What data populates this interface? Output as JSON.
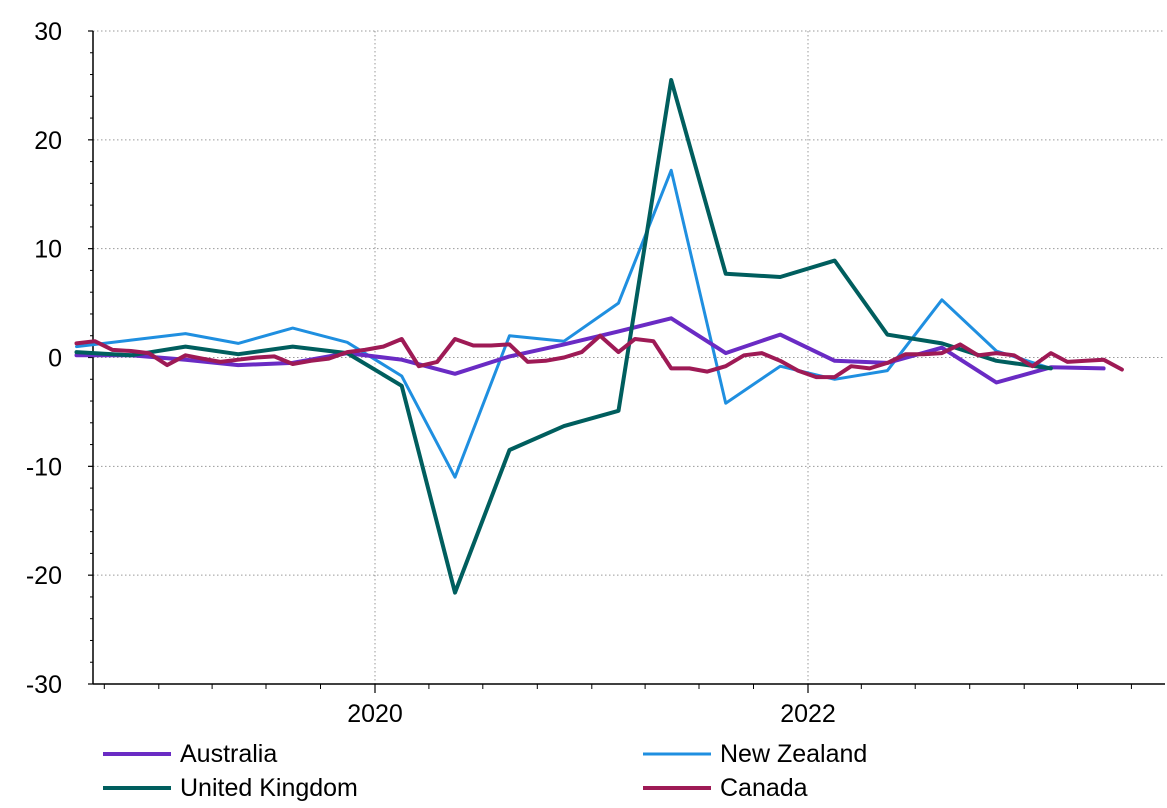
{
  "chart_data": {
    "type": "line",
    "title": "",
    "xlabel": "",
    "ylabel": "",
    "ylim": [
      -30,
      30
    ],
    "y_ticks": [
      30,
      20,
      10,
      0,
      -10,
      -20,
      -30
    ],
    "y_tick_labels": [
      "30",
      "20",
      "10",
      "0",
      "-10",
      "-20",
      "-30"
    ],
    "x_range": [
      "2018-08-01",
      "2023-09-30"
    ],
    "x_tick_labels": [
      {
        "date": "2020-01-01",
        "label": "2020"
      },
      {
        "date": "2022-01-01",
        "label": "2022"
      }
    ],
    "grid": "dotted at labelled ticks",
    "legend_position": "bottom, two columns",
    "series": [
      {
        "name": "Australia",
        "color": "#6a2bc4",
        "stroke_width": 4,
        "points": [
          [
            "2018-08-15",
            0.2
          ],
          [
            "2018-11-15",
            0.2
          ],
          [
            "2019-02-15",
            -0.2
          ],
          [
            "2019-05-15",
            -0.7
          ],
          [
            "2019-08-15",
            -0.5
          ],
          [
            "2019-11-15",
            0.4
          ],
          [
            "2020-02-15",
            -0.2
          ],
          [
            "2020-05-15",
            -1.5
          ],
          [
            "2020-08-15",
            0.1
          ],
          [
            "2020-11-15",
            1.2
          ],
          [
            "2021-02-15",
            2.4
          ],
          [
            "2021-05-15",
            3.6
          ],
          [
            "2021-08-15",
            0.4
          ],
          [
            "2021-11-15",
            2.1
          ],
          [
            "2022-02-15",
            -0.3
          ],
          [
            "2022-05-15",
            -0.5
          ],
          [
            "2022-08-15",
            0.9
          ],
          [
            "2022-11-15",
            -2.3
          ],
          [
            "2023-02-15",
            -0.9
          ],
          [
            "2023-05-15",
            -1.0
          ]
        ]
      },
      {
        "name": "New Zealand",
        "color": "#1f8fe0",
        "stroke_width": 3,
        "points": [
          [
            "2018-08-15",
            1.0
          ],
          [
            "2018-11-15",
            1.6
          ],
          [
            "2019-02-15",
            2.2
          ],
          [
            "2019-05-15",
            1.3
          ],
          [
            "2019-08-15",
            2.7
          ],
          [
            "2019-11-15",
            1.4
          ],
          [
            "2020-02-15",
            -1.7
          ],
          [
            "2020-05-15",
            -11.0
          ],
          [
            "2020-08-15",
            2.0
          ],
          [
            "2020-11-15",
            1.5
          ],
          [
            "2021-02-15",
            5.0
          ],
          [
            "2021-05-15",
            17.2
          ],
          [
            "2021-08-15",
            -4.2
          ],
          [
            "2021-11-15",
            -0.8
          ],
          [
            "2022-02-15",
            -2.0
          ],
          [
            "2022-05-15",
            -1.2
          ],
          [
            "2022-08-15",
            5.3
          ],
          [
            "2022-11-15",
            0.6
          ],
          [
            "2023-02-15",
            -1.0
          ]
        ]
      },
      {
        "name": "United Kingdom",
        "color": "#005e5e",
        "stroke_width": 4,
        "points": [
          [
            "2018-08-15",
            0.5
          ],
          [
            "2018-11-15",
            0.2
          ],
          [
            "2019-02-15",
            1.0
          ],
          [
            "2019-05-15",
            0.3
          ],
          [
            "2019-08-15",
            1.0
          ],
          [
            "2019-11-15",
            0.4
          ],
          [
            "2020-02-15",
            -2.6
          ],
          [
            "2020-05-15",
            -21.6
          ],
          [
            "2020-08-15",
            -8.5
          ],
          [
            "2020-11-15",
            -6.3
          ],
          [
            "2021-02-15",
            -4.9
          ],
          [
            "2021-05-15",
            25.5
          ],
          [
            "2021-08-15",
            7.7
          ],
          [
            "2021-11-15",
            7.4
          ],
          [
            "2022-02-15",
            8.9
          ],
          [
            "2022-05-15",
            2.1
          ],
          [
            "2022-08-15",
            1.3
          ],
          [
            "2022-11-15",
            -0.3
          ],
          [
            "2023-02-15",
            -1.0
          ]
        ]
      },
      {
        "name": "Canada",
        "color": "#9e1a55",
        "stroke_width": 4,
        "points": [
          [
            "2018-08-15",
            1.3
          ],
          [
            "2018-09-15",
            1.5
          ],
          [
            "2018-10-15",
            0.7
          ],
          [
            "2018-11-15",
            0.6
          ],
          [
            "2018-12-15",
            0.4
          ],
          [
            "2019-01-15",
            -0.7
          ],
          [
            "2019-02-15",
            0.2
          ],
          [
            "2019-03-15",
            -0.1
          ],
          [
            "2019-04-15",
            -0.4
          ],
          [
            "2019-05-15",
            -0.2
          ],
          [
            "2019-06-15",
            0.0
          ],
          [
            "2019-07-15",
            0.1
          ],
          [
            "2019-08-15",
            -0.6
          ],
          [
            "2019-09-15",
            -0.3
          ],
          [
            "2019-10-15",
            -0.1
          ],
          [
            "2019-11-15",
            0.5
          ],
          [
            "2019-12-15",
            0.7
          ],
          [
            "2020-01-15",
            1.0
          ],
          [
            "2020-02-15",
            1.7
          ],
          [
            "2020-03-15",
            -0.8
          ],
          [
            "2020-04-15",
            -0.4
          ],
          [
            "2020-05-15",
            1.7
          ],
          [
            "2020-06-15",
            1.1
          ],
          [
            "2020-07-15",
            1.1
          ],
          [
            "2020-08-15",
            1.2
          ],
          [
            "2020-09-15",
            -0.4
          ],
          [
            "2020-10-15",
            -0.3
          ],
          [
            "2020-11-15",
            0.0
          ],
          [
            "2020-12-15",
            0.5
          ],
          [
            "2021-01-15",
            2.0
          ],
          [
            "2021-02-15",
            0.5
          ],
          [
            "2021-03-15",
            1.7
          ],
          [
            "2021-04-15",
            1.5
          ],
          [
            "2021-05-15",
            -1.0
          ],
          [
            "2021-06-15",
            -1.0
          ],
          [
            "2021-07-15",
            -1.3
          ],
          [
            "2021-08-15",
            -0.8
          ],
          [
            "2021-09-15",
            0.2
          ],
          [
            "2021-10-15",
            0.4
          ],
          [
            "2021-11-15",
            -0.3
          ],
          [
            "2021-12-15",
            -1.2
          ],
          [
            "2022-01-15",
            -1.8
          ],
          [
            "2022-02-15",
            -1.8
          ],
          [
            "2022-03-15",
            -0.8
          ],
          [
            "2022-04-15",
            -1.0
          ],
          [
            "2022-05-15",
            -0.5
          ],
          [
            "2022-06-15",
            0.3
          ],
          [
            "2022-07-15",
            0.3
          ],
          [
            "2022-08-15",
            0.4
          ],
          [
            "2022-09-15",
            1.2
          ],
          [
            "2022-10-15",
            0.2
          ],
          [
            "2022-11-15",
            0.4
          ],
          [
            "2022-12-15",
            0.2
          ],
          [
            "2023-01-15",
            -0.8
          ],
          [
            "2023-02-15",
            0.4
          ],
          [
            "2023-03-15",
            -0.4
          ],
          [
            "2023-04-15",
            -0.3
          ],
          [
            "2023-05-15",
            -0.2
          ],
          [
            "2023-06-15",
            -1.1
          ]
        ]
      }
    ],
    "legend": [
      {
        "label": "Australia",
        "color": "#6a2bc4",
        "stroke_width": 4
      },
      {
        "label": "New Zealand",
        "color": "#1f8fe0",
        "stroke_width": 3
      },
      {
        "label": "United Kingdom",
        "color": "#005e5e",
        "stroke_width": 4
      },
      {
        "label": "Canada",
        "color": "#9e1a55",
        "stroke_width": 4
      }
    ]
  }
}
